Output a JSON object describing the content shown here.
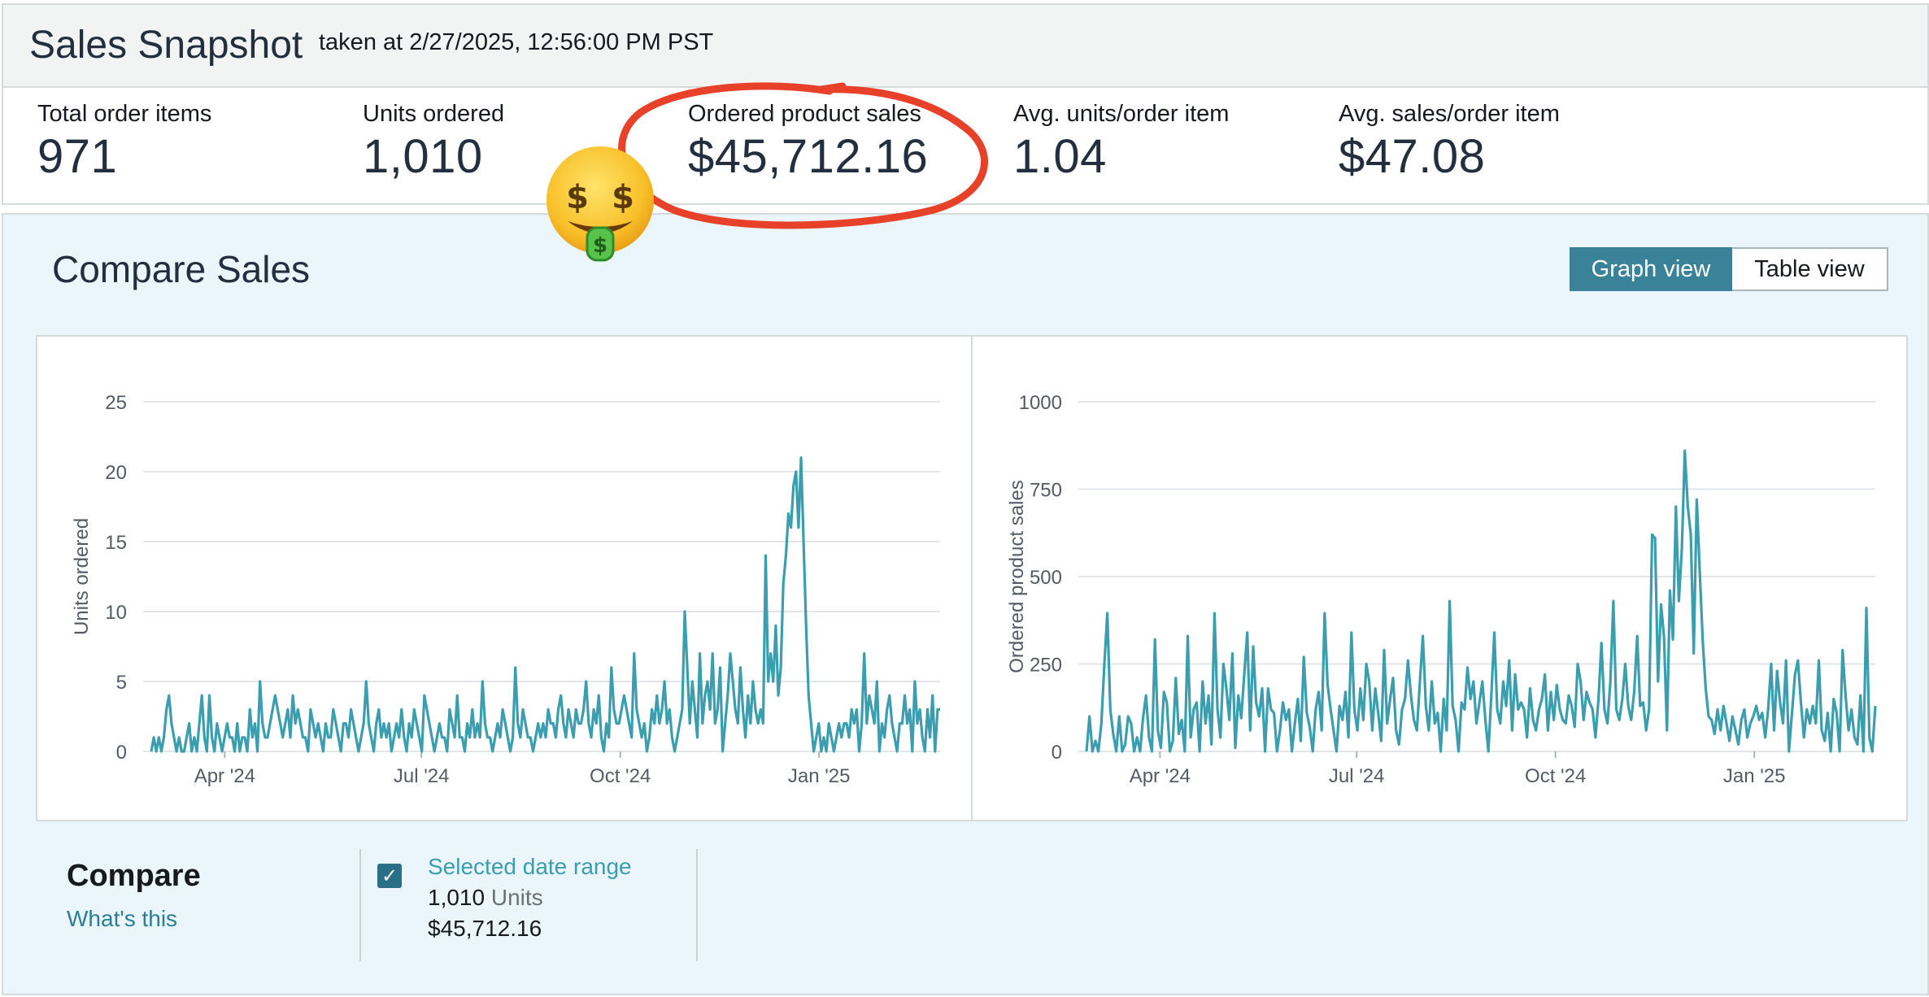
{
  "snapshot": {
    "title": "Sales Snapshot",
    "taken_at": "taken at 2/27/2025, 12:56:00 PM PST"
  },
  "metrics": [
    {
      "label": "Total order items",
      "value": "971"
    },
    {
      "label": "Units ordered",
      "value": "1,010"
    },
    {
      "label": "Ordered product sales",
      "value": "$45,712.16"
    },
    {
      "label": "Avg. units/order item",
      "value": "1.04"
    },
    {
      "label": "Avg. sales/order item",
      "value": "$47.08"
    }
  ],
  "compare_sales": {
    "title": "Compare Sales",
    "graph_view_label": "Graph view",
    "table_view_label": "Table view",
    "active_view": "graph"
  },
  "compare_footer": {
    "label": "Compare",
    "link": "What's this",
    "range_title": "Selected date range",
    "units_value": "1,010",
    "units_word": "Units",
    "sales_value": "$45,712.16",
    "checked": true
  },
  "colors": {
    "line": "#3a9eaf",
    "accent": "#3a8298",
    "annotation": "#e8412a"
  },
  "icons": {
    "emoji": "money-mouth-face-icon",
    "checkbox": "check-icon"
  },
  "chart_data": [
    {
      "type": "line",
      "ylabel": "Units ordered",
      "xlabel": "",
      "ylim": [
        0,
        25
      ],
      "yticks": [
        0,
        5,
        10,
        15,
        20,
        25
      ],
      "xticks": [
        {
          "label": "Apr '24",
          "x": "2024-04-01"
        },
        {
          "label": "Jul '24",
          "x": "2024-07-01"
        },
        {
          "label": "Oct '24",
          "x": "2024-10-01"
        },
        {
          "label": "Jan '25",
          "x": "2025-01-01"
        }
      ],
      "x_start": "2024-02-27",
      "x_end": "2025-02-26",
      "grid": true,
      "series": [
        {
          "values": [
            0,
            1,
            0,
            1,
            0,
            1,
            3,
            4,
            2,
            1,
            0,
            1,
            0,
            0,
            1,
            2,
            0,
            1,
            0,
            2,
            4,
            1,
            0,
            4,
            1,
            0,
            2,
            1,
            0,
            1,
            2,
            1,
            1,
            0,
            2,
            0,
            1,
            1,
            0,
            3,
            1,
            2,
            0,
            5,
            2,
            1,
            1,
            2,
            3,
            4,
            3,
            2,
            1,
            2,
            3,
            1,
            4,
            2,
            3,
            2,
            1,
            1,
            0,
            3,
            2,
            1,
            2,
            1,
            0,
            2,
            1,
            1,
            3,
            2,
            1,
            0,
            2,
            2,
            1,
            3,
            2,
            1,
            0,
            1,
            2,
            5,
            2,
            1,
            0,
            2,
            3,
            1,
            2,
            1,
            2,
            0,
            1,
            2,
            1,
            3,
            1,
            0,
            2,
            1,
            3,
            2,
            1,
            0,
            4,
            3,
            2,
            1,
            0,
            1,
            2,
            1,
            1,
            0,
            3,
            2,
            1,
            4,
            1,
            1,
            0,
            2,
            1,
            3,
            1,
            2,
            1,
            5,
            2,
            1,
            1,
            0,
            1,
            2,
            1,
            3,
            2,
            1,
            0,
            1,
            6,
            2,
            1,
            3,
            2,
            1,
            1,
            0,
            1,
            2,
            1,
            2,
            1,
            3,
            2,
            2,
            1,
            3,
            4,
            2,
            1,
            3,
            2,
            1,
            3,
            2,
            2,
            3,
            5,
            2,
            1,
            3,
            2,
            4,
            1,
            0,
            2,
            1,
            6,
            3,
            2,
            2,
            3,
            4,
            3,
            2,
            1,
            7,
            3,
            2,
            1,
            2,
            0,
            1,
            3,
            2,
            4,
            2,
            3,
            5,
            2,
            3,
            1,
            0,
            1,
            2,
            3,
            10,
            6,
            2,
            5,
            3,
            1,
            7,
            2,
            4,
            5,
            3,
            7,
            2,
            3,
            6,
            0,
            2,
            4,
            7,
            5,
            3,
            2,
            6,
            3,
            1,
            4,
            2,
            5,
            3,
            2,
            3,
            2,
            14,
            5,
            7,
            5,
            9,
            4,
            6,
            12,
            14,
            17,
            16,
            19,
            20,
            16,
            21,
            15,
            9,
            4,
            2,
            0,
            1,
            2,
            0,
            1,
            0,
            2,
            1,
            0,
            1,
            2,
            1,
            2,
            2,
            1,
            3,
            2,
            3,
            0,
            2,
            7,
            2,
            4,
            3,
            2,
            5,
            0,
            2,
            1,
            3,
            4,
            2,
            1,
            0,
            2,
            2,
            4,
            2,
            3,
            0,
            5,
            2,
            3,
            1,
            0,
            3,
            1,
            4,
            0,
            3,
            3
          ],
          "color": "#3a9eaf"
        }
      ]
    },
    {
      "type": "line",
      "ylabel": "Ordered product sales",
      "xlabel": "",
      "ylim": [
        0,
        1000
      ],
      "yticks": [
        0,
        250,
        500,
        750,
        1000
      ],
      "xticks": [
        {
          "label": "Apr '24",
          "x": "2024-04-01"
        },
        {
          "label": "Jul '24",
          "x": "2024-07-01"
        },
        {
          "label": "Oct '24",
          "x": "2024-10-01"
        },
        {
          "label": "Jan '25",
          "x": "2025-01-01"
        }
      ],
      "x_start": "2024-02-27",
      "x_end": "2025-02-26",
      "grid": true,
      "series": [
        {
          "values": [
            0,
            100,
            0,
            30,
            0,
            80,
            250,
            395,
            120,
            50,
            0,
            100,
            0,
            20,
            100,
            80,
            0,
            40,
            0,
            95,
            160,
            40,
            0,
            320,
            60,
            10,
            170,
            140,
            0,
            30,
            210,
            50,
            90,
            0,
            330,
            40,
            120,
            140,
            0,
            200,
            80,
            160,
            20,
            395,
            120,
            40,
            250,
            180,
            90,
            280,
            10,
            160,
            95,
            220,
            340,
            60,
            300,
            140,
            100,
            180,
            0,
            180,
            120,
            110,
            0,
            60,
            140,
            90,
            120,
            0,
            80,
            150,
            30,
            270,
            110,
            70,
            0,
            120,
            170,
            60,
            395,
            190,
            120,
            60,
            0,
            130,
            90,
            170,
            40,
            340,
            120,
            60,
            180,
            90,
            250,
            200,
            60,
            180,
            110,
            30,
            290,
            80,
            150,
            210,
            60,
            20,
            120,
            150,
            260,
            160,
            90,
            60,
            200,
            330,
            130,
            60,
            200,
            80,
            110,
            0,
            150,
            60,
            430,
            130,
            90,
            0,
            140,
            120,
            240,
            150,
            200,
            80,
            140,
            200,
            90,
            0,
            160,
            340,
            120,
            80,
            200,
            130,
            260,
            60,
            220,
            120,
            140,
            120,
            40,
            180,
            90,
            60,
            120,
            150,
            220,
            60,
            170,
            90,
            190,
            120,
            90,
            80,
            160,
            130,
            70,
            250,
            200,
            90,
            170,
            140,
            120,
            40,
            150,
            310,
            120,
            80,
            200,
            430,
            120,
            90,
            150,
            250,
            130,
            90,
            170,
            330,
            130,
            140,
            60,
            120,
            620,
            610,
            200,
            420,
            330,
            60,
            460,
            320,
            700,
            430,
            580,
            860,
            700,
            620,
            280,
            720,
            520,
            320,
            180,
            100,
            90,
            50,
            120,
            60,
            130,
            80,
            30,
            100,
            60,
            20,
            90,
            120,
            40,
            80,
            100,
            130,
            90,
            110,
            40,
            120,
            250,
            60,
            230,
            140,
            80,
            260,
            0,
            110,
            220,
            260,
            140,
            40,
            120,
            80,
            130,
            80,
            260,
            60,
            30,
            110,
            0,
            150,
            110,
            0,
            290,
            160,
            60,
            120,
            40,
            20,
            160,
            0,
            410,
            40,
            0,
            130
          ],
          "color": "#3a9eaf"
        }
      ]
    }
  ]
}
